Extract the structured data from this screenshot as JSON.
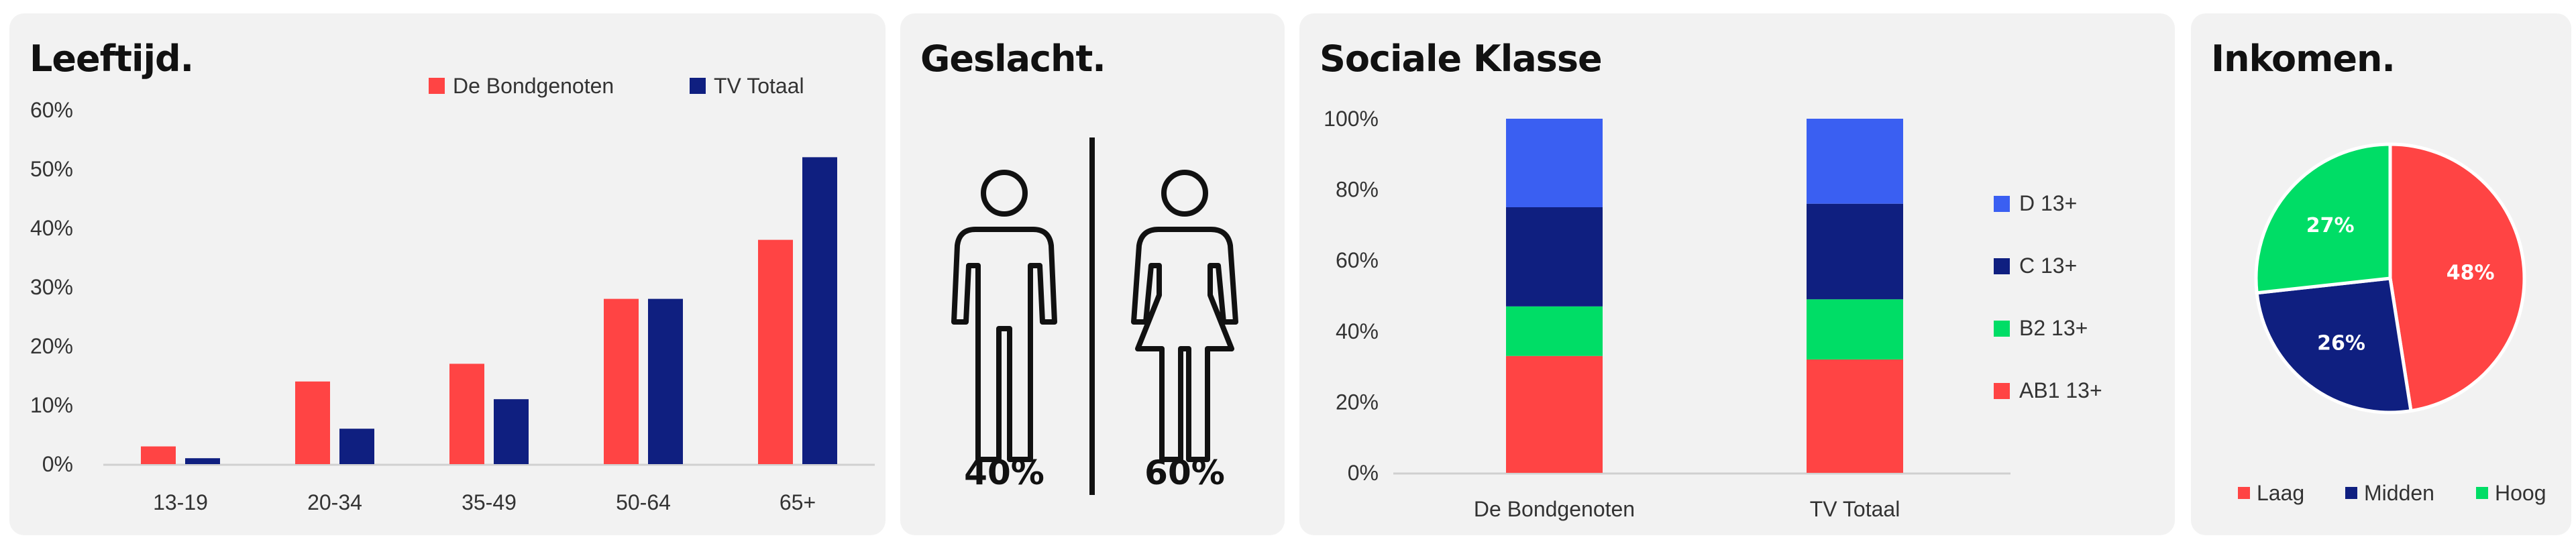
{
  "colors": {
    "red": "#ff4444",
    "navy": "#0f1f80",
    "blue": "#3a5ff2",
    "green": "#00dd66",
    "panel": "#f2f2f2"
  },
  "leeftijd": {
    "title": "Leeftijd.",
    "chart_data": {
      "type": "bar",
      "categories": [
        "13-19",
        "20-34",
        "35-49",
        "50-64",
        "65+"
      ],
      "series": [
        {
          "name": "De Bondgenoten",
          "values": [
            3,
            14,
            17,
            28,
            38
          ]
        },
        {
          "name": "TV Totaal",
          "values": [
            1,
            6,
            11,
            28,
            52
          ]
        }
      ],
      "yticks": [
        "0%",
        "10%",
        "20%",
        "30%",
        "40%",
        "50%",
        "60%"
      ],
      "ylim": [
        0,
        60
      ]
    }
  },
  "geslacht": {
    "title": "Geslacht.",
    "male_icon": "male-person-icon",
    "female_icon": "female-person-icon",
    "male_pct": "40%",
    "female_pct": "60%"
  },
  "sociale_klasse": {
    "title": "Sociale Klasse",
    "chart_data": {
      "type": "bar",
      "stacked": true,
      "categories": [
        "De Bondgenoten",
        "TV Totaal"
      ],
      "series": [
        {
          "name": "AB1 13+",
          "values": [
            33,
            32
          ]
        },
        {
          "name": "B2 13+",
          "values": [
            14,
            17
          ]
        },
        {
          "name": "C 13+",
          "values": [
            28,
            27
          ]
        },
        {
          "name": "D 13+",
          "values": [
            25,
            24
          ]
        }
      ],
      "yticks": [
        "0%",
        "20%",
        "40%",
        "60%",
        "80%",
        "100%"
      ],
      "ylim": [
        0,
        100
      ]
    }
  },
  "inkomen": {
    "title": "Inkomen.",
    "chart_data": {
      "type": "pie",
      "slices": [
        {
          "name": "Laag",
          "value": 48,
          "label": "48%"
        },
        {
          "name": "Midden",
          "value": 26,
          "label": "26%"
        },
        {
          "name": "Hoog",
          "value": 27,
          "label": "27%"
        }
      ]
    }
  }
}
